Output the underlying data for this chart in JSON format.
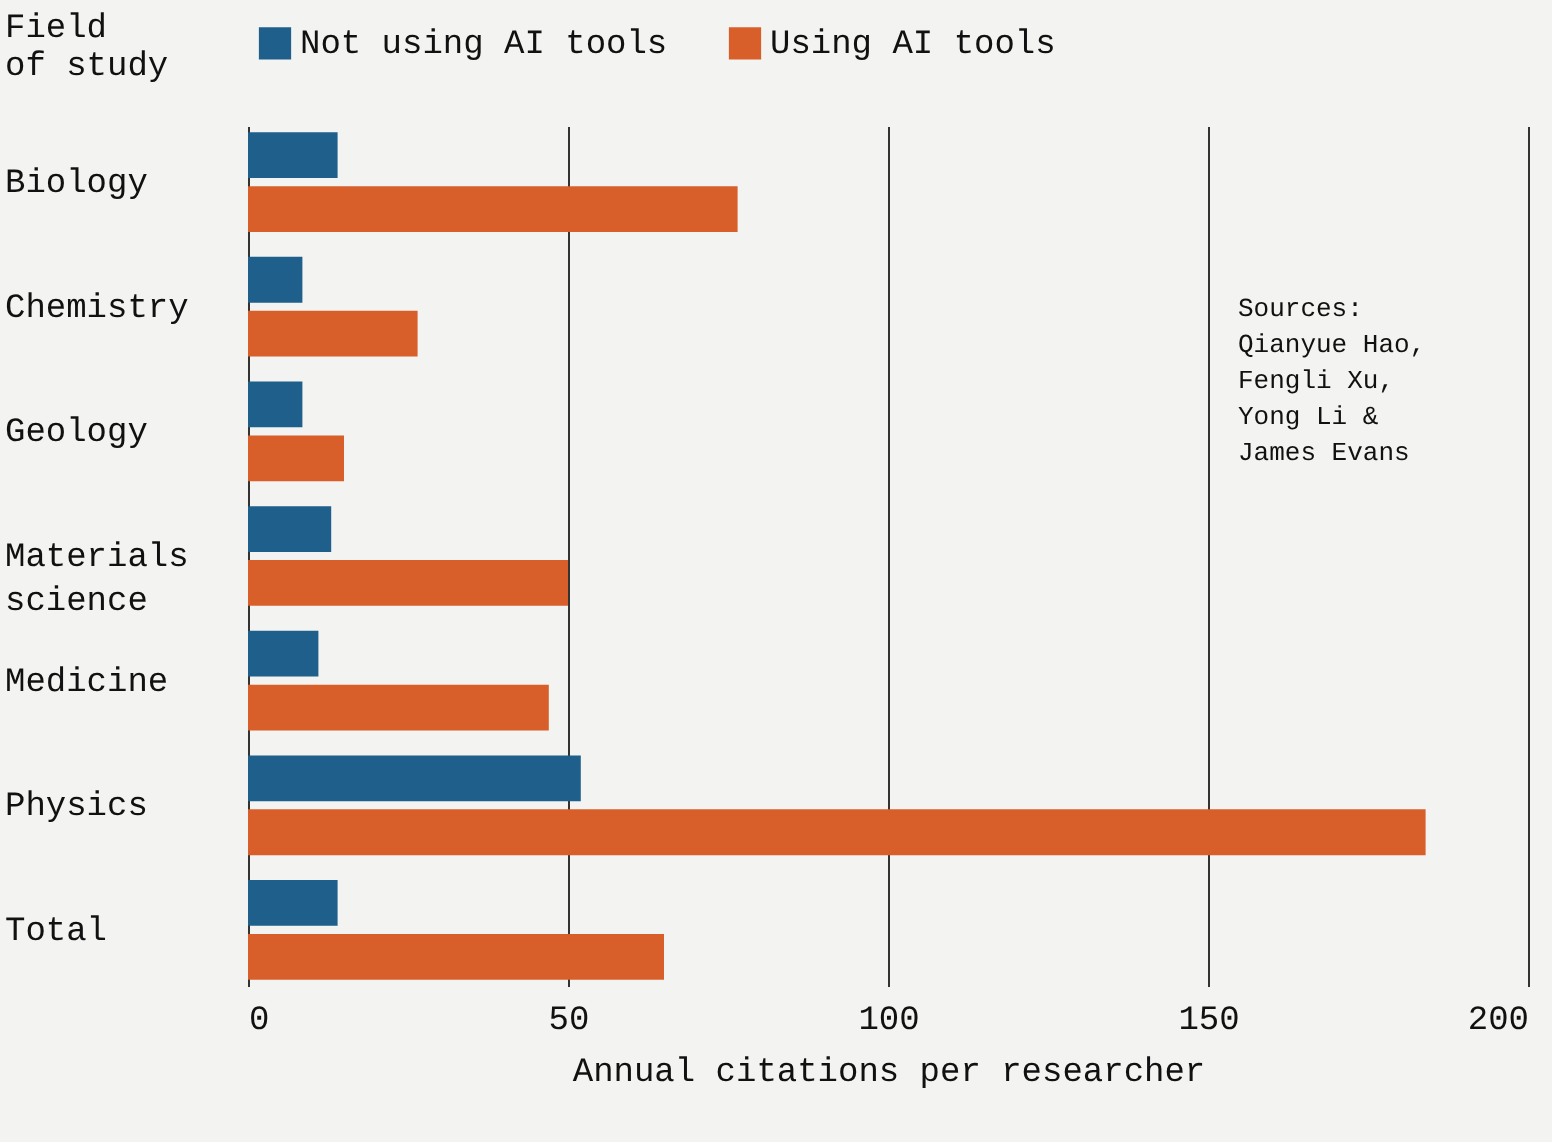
{
  "chart_data": {
    "type": "bar",
    "orientation": "horizontal",
    "ylabel": "Field of study",
    "xlabel": "Annual citations per researcher",
    "categories": [
      "Biology",
      "Chemistry",
      "Geology",
      "Materials science",
      "Medicine",
      "Physics",
      "Total"
    ],
    "series": [
      {
        "name": "Not using AI tools",
        "color": "#1f5f8b",
        "values": [
          14,
          8.5,
          8.5,
          13,
          11,
          52,
          14
        ]
      },
      {
        "name": "Using AI tools",
        "color": "#d95f2a",
        "values": [
          76.5,
          26.5,
          15,
          50,
          47,
          184,
          65
        ]
      }
    ],
    "xlim": [
      0,
      200
    ],
    "xticks": [
      0,
      50,
      100,
      150,
      200
    ],
    "grid": "x",
    "legend": "top",
    "annotations": [
      "Sources:\nQianyue Hao,\nFengli Xu,\nYong Li &\nJames Evans"
    ]
  }
}
